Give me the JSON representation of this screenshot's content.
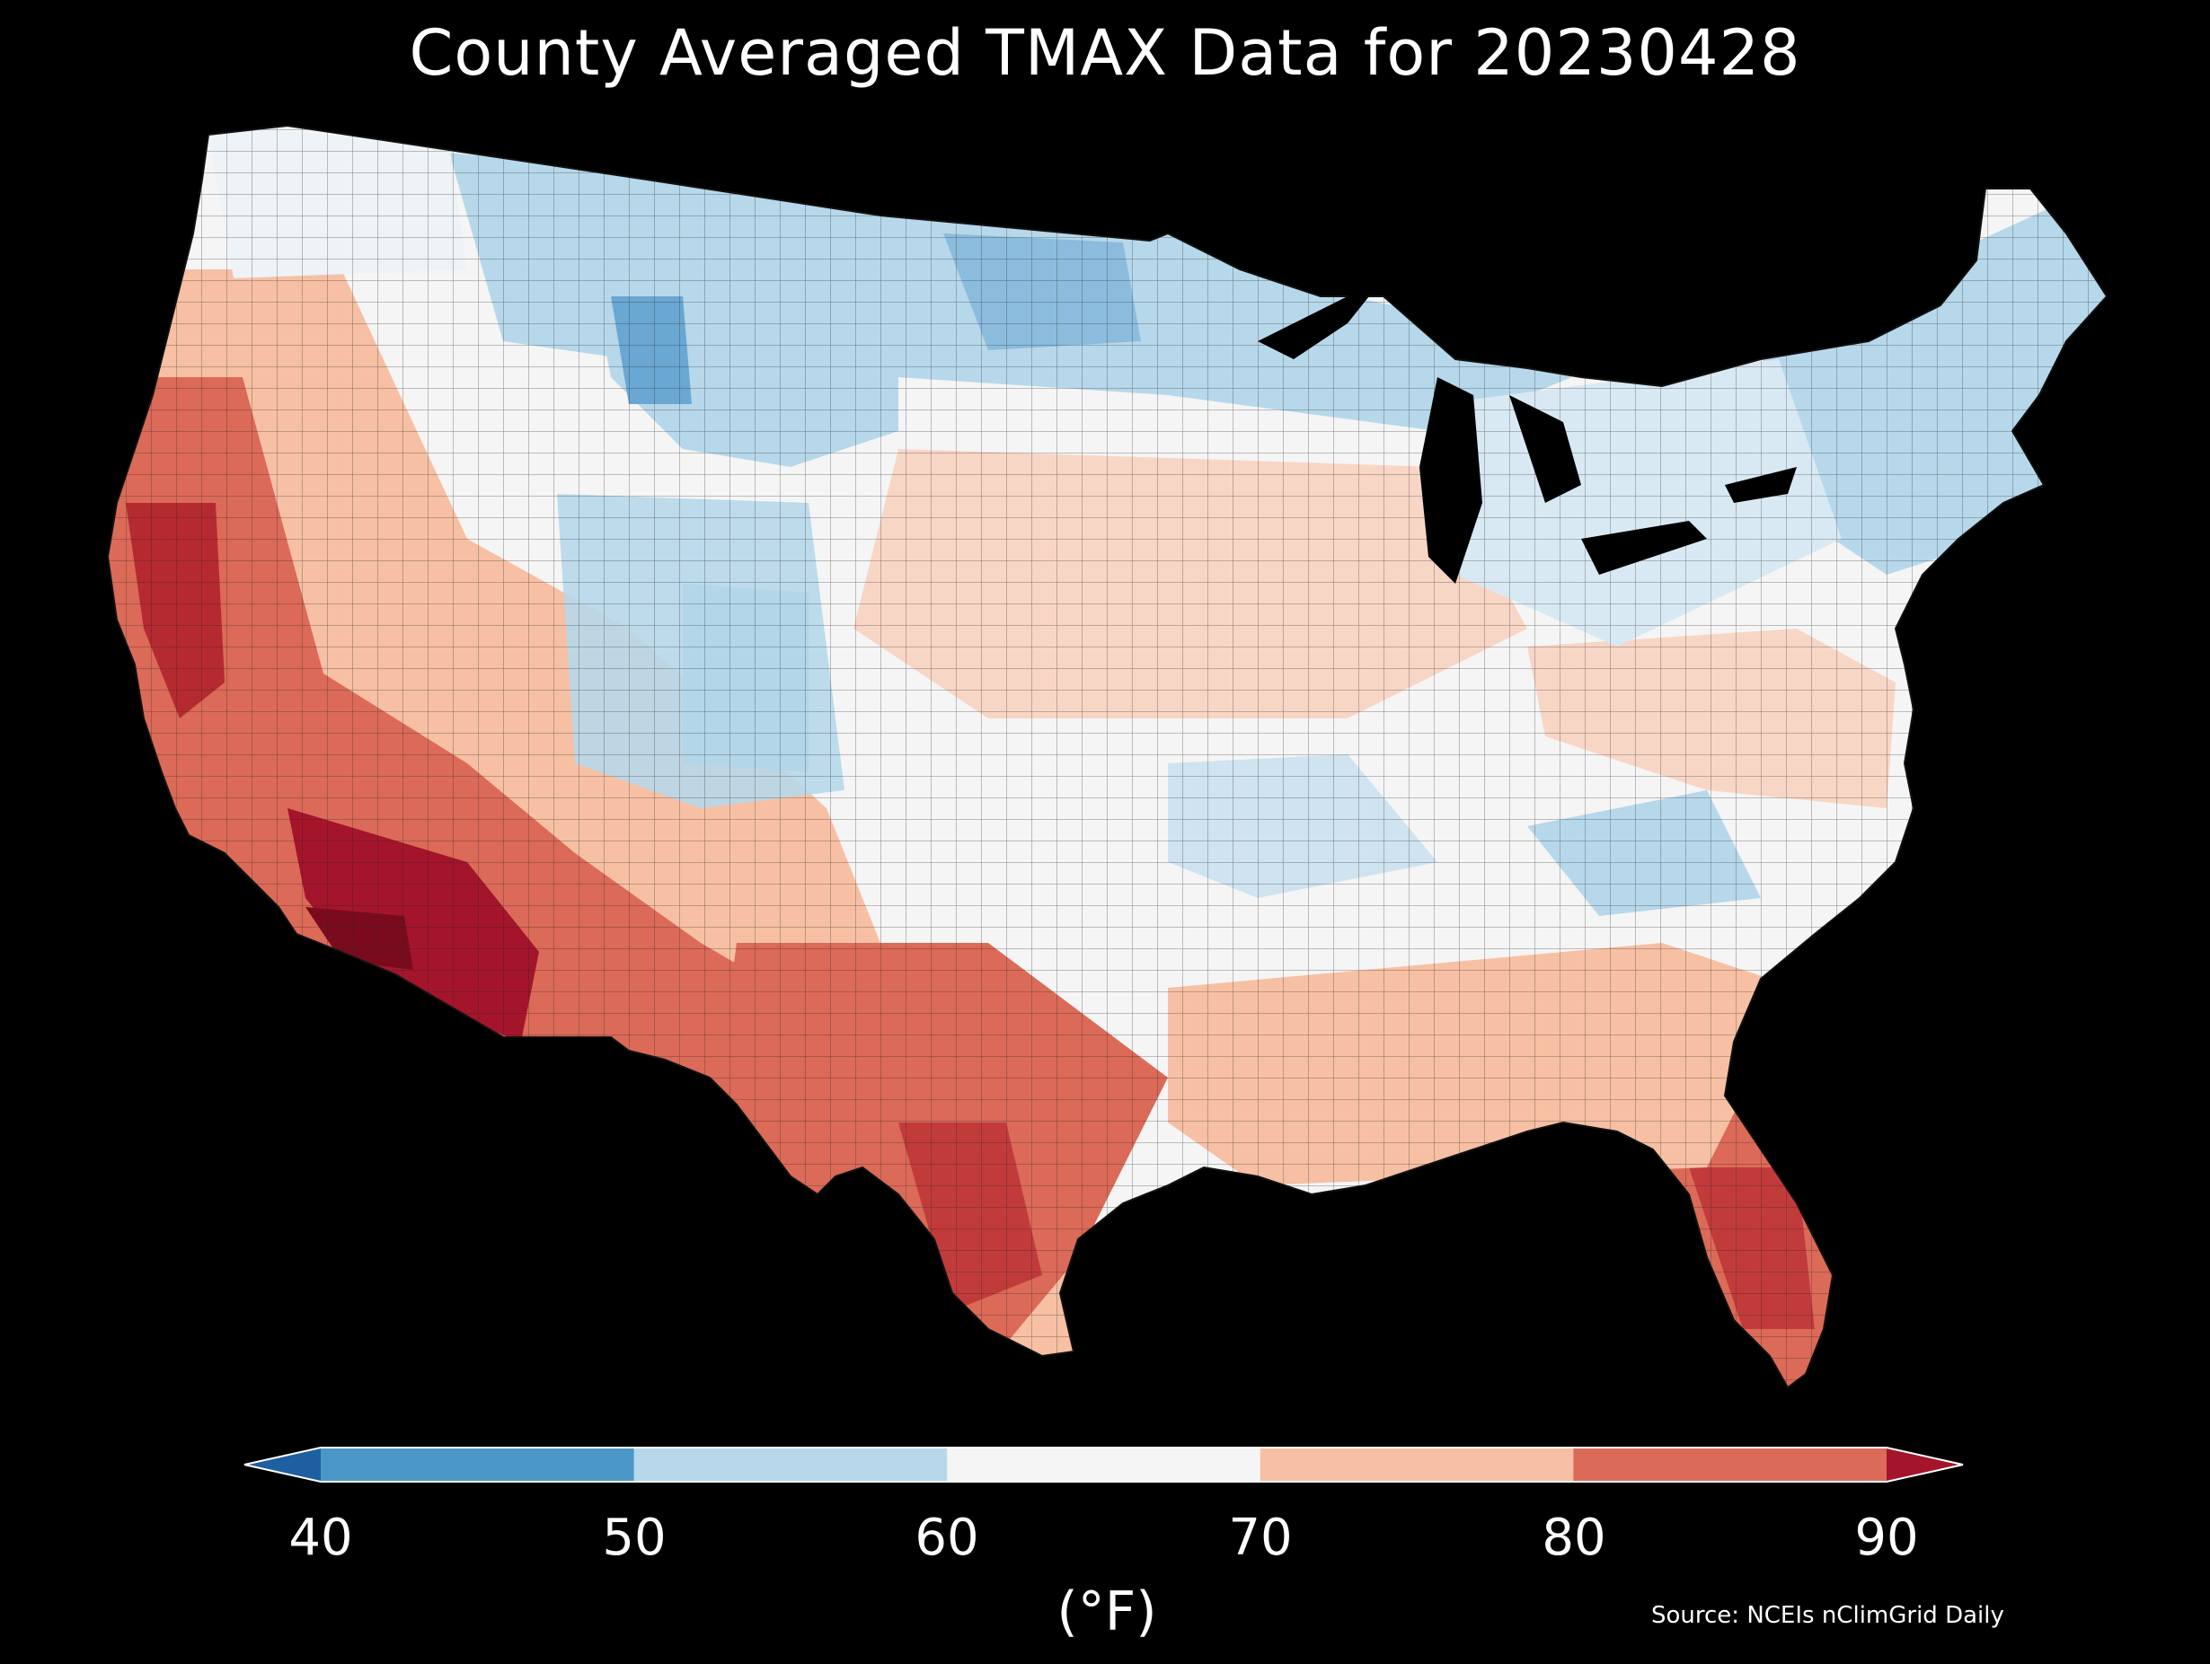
{
  "title": "County Averaged TMAX Data for 20230428",
  "units": "(°F)",
  "source": "Source: NCEIs nClimGrid Daily",
  "colorbar": {
    "ticks": [
      "40",
      "50",
      "60",
      "70",
      "80",
      "90"
    ],
    "bins": [
      {
        "range": "<40",
        "color": "#1d5fa1"
      },
      {
        "range": "40-50",
        "color": "#4b98c8"
      },
      {
        "range": "50-60",
        "color": "#b7d8ea"
      },
      {
        "range": "60-70",
        "color": "#f5f5f5"
      },
      {
        "range": "70-80",
        "color": "#f7c0a4"
      },
      {
        "range": "80-90",
        "color": "#dc6a58"
      },
      {
        "range": ">90",
        "color": "#a4152b"
      }
    ]
  },
  "map": {
    "region": "Contiguous United States counties",
    "background": "#000000",
    "hottest_areas": "southern Arizona and California Central Valley",
    "coolest_areas": "Montana / Wyoming / northern Minnesota"
  }
}
